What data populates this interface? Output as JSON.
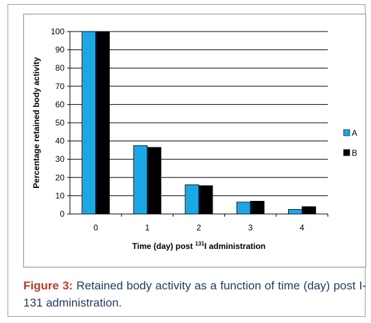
{
  "figure": {
    "label": "Figure 3:",
    "caption_text": " Retained body activity as a function of time (day) post I-131 administration."
  },
  "colors": {
    "series_A": "#1aa7e6",
    "series_B": "#000000",
    "caption_label": "#c0392b",
    "caption_text": "#1f3a5f"
  },
  "chart_data": {
    "type": "bar",
    "categories": [
      "0",
      "1",
      "2",
      "3",
      "4"
    ],
    "series": [
      {
        "name": "A",
        "values": [
          100,
          37.5,
          16,
          6.5,
          2.5
        ]
      },
      {
        "name": "B",
        "values": [
          100,
          36.5,
          15.5,
          7,
          4
        ]
      }
    ],
    "xlabel": "Time (day) post ¹³¹I administration",
    "xlabel_parts": {
      "pre": "Time (day) post ",
      "sup": "131",
      "post": "I administration"
    },
    "ylabel": "Percentage retained body activity",
    "ylim": [
      0,
      100
    ],
    "yticks": [
      "0",
      "10",
      "20",
      "30",
      "40",
      "50",
      "60",
      "70",
      "80",
      "90",
      "100"
    ],
    "grid": true,
    "legend": "right"
  }
}
